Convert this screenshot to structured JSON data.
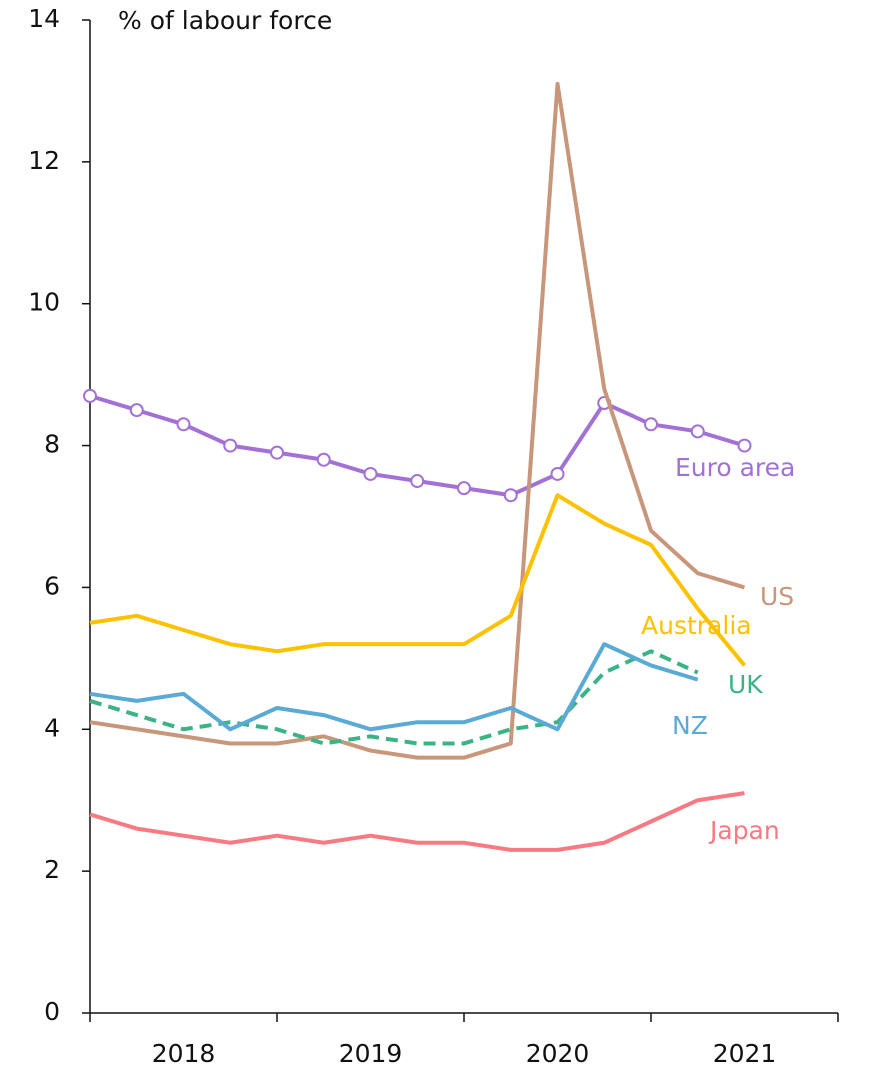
{
  "chart_data": {
    "type": "line",
    "ylabel": "% of labour force",
    "categories": [
      null,
      null,
      "2018",
      null,
      null,
      null,
      "2019",
      null,
      null,
      null,
      "2020",
      null,
      null,
      null,
      "2021"
    ],
    "ylim": [
      0,
      14
    ],
    "yticks": [
      0,
      2,
      4,
      6,
      8,
      10,
      12,
      14
    ],
    "series": [
      {
        "name": "Euro area",
        "color": "#a371d6",
        "markers": true,
        "values": [
          8.7,
          8.5,
          8.3,
          8.0,
          7.9,
          7.8,
          7.6,
          7.5,
          7.4,
          7.3,
          7.6,
          8.6,
          8.3,
          8.2,
          8.0
        ]
      },
      {
        "name": "US",
        "color": "#c8967a",
        "values": [
          4.1,
          4.0,
          3.9,
          3.8,
          3.8,
          3.9,
          3.7,
          3.6,
          3.6,
          3.8,
          13.1,
          8.8,
          6.8,
          6.2,
          6.0
        ]
      },
      {
        "name": "Australia",
        "color": "#fdc100",
        "values": [
          5.5,
          5.6,
          5.4,
          5.2,
          5.1,
          5.2,
          5.2,
          5.2,
          5.2,
          5.6,
          7.3,
          6.9,
          6.6,
          5.7,
          4.9
        ]
      },
      {
        "name": "UK",
        "color": "#3cb387",
        "dashed": true,
        "values": [
          4.4,
          4.2,
          4.0,
          4.1,
          4.0,
          3.8,
          3.9,
          3.8,
          3.8,
          4.0,
          4.1,
          4.8,
          5.1,
          4.8,
          null
        ]
      },
      {
        "name": "NZ",
        "color": "#5aaad6",
        "values": [
          4.5,
          4.4,
          4.5,
          4.0,
          4.3,
          4.2,
          4.0,
          4.1,
          4.1,
          4.3,
          4.0,
          5.2,
          4.9,
          4.7,
          null
        ]
      },
      {
        "name": "Japan",
        "color": "#f77a82",
        "values": [
          2.8,
          2.6,
          2.5,
          2.4,
          2.5,
          2.4,
          2.5,
          2.4,
          2.4,
          2.3,
          2.3,
          2.4,
          2.7,
          3.0,
          3.1
        ]
      }
    ]
  }
}
